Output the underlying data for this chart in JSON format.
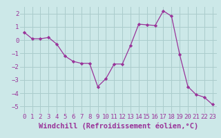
{
  "x": [
    0,
    1,
    2,
    3,
    4,
    5,
    6,
    7,
    8,
    9,
    10,
    11,
    12,
    13,
    14,
    15,
    16,
    17,
    18,
    19,
    20,
    21,
    22,
    23
  ],
  "y": [
    0.6,
    0.1,
    0.1,
    0.2,
    -0.3,
    -1.2,
    -1.6,
    -1.75,
    -1.75,
    -3.5,
    -2.9,
    -1.8,
    -1.8,
    -0.4,
    1.2,
    1.15,
    1.1,
    2.2,
    1.8,
    -1.1,
    -3.5,
    -4.1,
    -4.3,
    -4.85
  ],
  "line_color": "#993399",
  "marker": "D",
  "marker_size": 2.2,
  "bg_color": "#cce8e8",
  "grid_color": "#aacccc",
  "xlabel": "Windchill (Refroidissement éolien,°C)",
  "xlabel_fontsize": 7.5,
  "ylim": [
    -5.5,
    2.5
  ],
  "xlim": [
    -0.5,
    23.5
  ],
  "yticks": [
    -5,
    -4,
    -3,
    -2,
    -1,
    0,
    1,
    2
  ],
  "xtick_labels": [
    "0",
    "1",
    "2",
    "3",
    "4",
    "5",
    "6",
    "7",
    "8",
    "9",
    "10",
    "11",
    "12",
    "13",
    "14",
    "15",
    "16",
    "17",
    "18",
    "19",
    "20",
    "21",
    "22",
    "23"
  ],
  "tick_fontsize": 6.5
}
